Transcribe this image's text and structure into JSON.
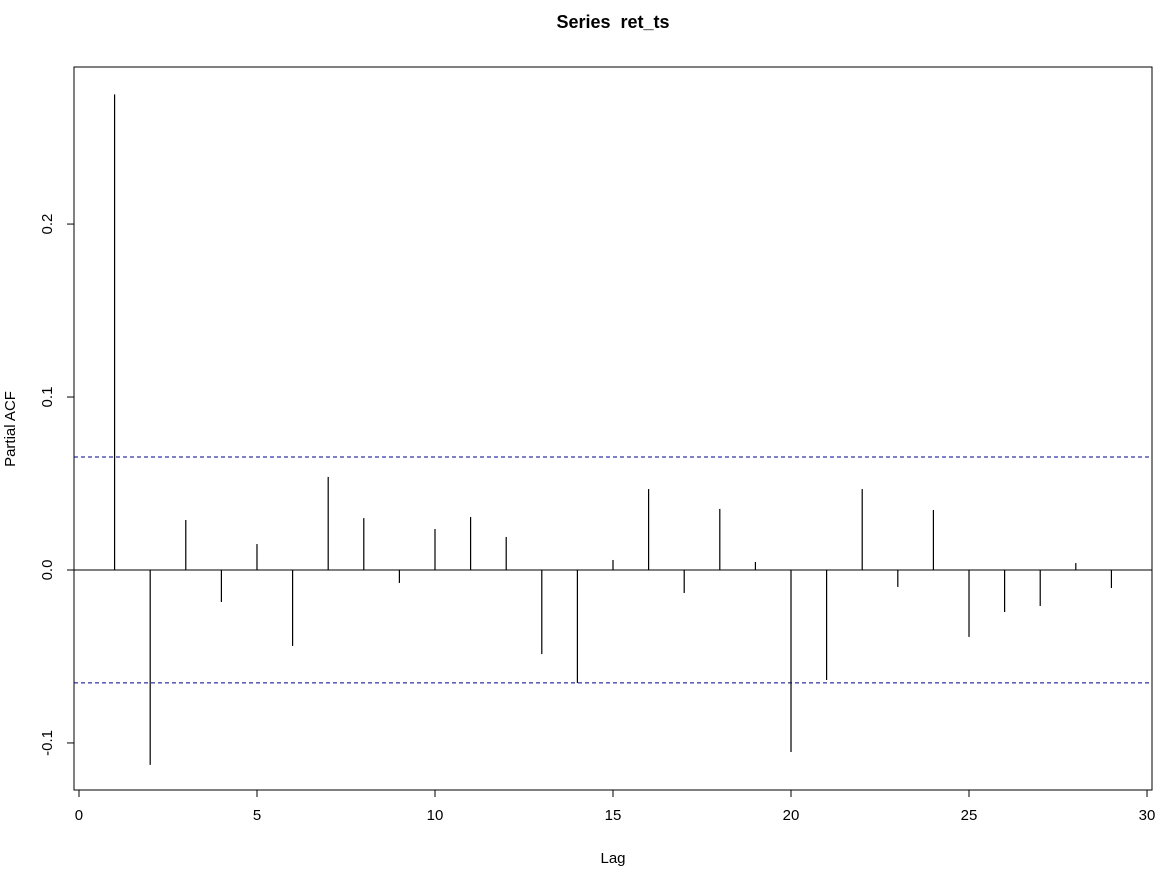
{
  "chart_data": {
    "type": "spike",
    "title": "Series  ret_ts",
    "x_label": "Lag",
    "y_label": "Partial ACF",
    "x": [
      1,
      2,
      3,
      4,
      5,
      6,
      7,
      8,
      9,
      10,
      11,
      12,
      13,
      14,
      15,
      16,
      17,
      18,
      19,
      20,
      21,
      22,
      23,
      24,
      25,
      26,
      27,
      28,
      29
    ],
    "values": [
      0.275,
      -0.1127,
      0.0289,
      -0.0185,
      0.015,
      -0.0439,
      0.0538,
      0.03,
      -0.0075,
      0.0237,
      0.0306,
      0.0191,
      -0.0486,
      -0.0653,
      0.0058,
      0.0468,
      -0.0133,
      0.0353,
      0.0046,
      -0.1052,
      -0.0636,
      0.0468,
      -0.0098,
      0.0347,
      -0.0387,
      -0.0243,
      -0.0208,
      0.004,
      -0.0104
    ],
    "color": "#000000",
    "ci_lines": [
      0.0653,
      -0.0653
    ],
    "ci_color": "#00008b",
    "xlim": [
      -0.14,
      30.14
    ],
    "ylim": [
      -0.1272,
      0.2908
    ],
    "xticks": [
      0,
      5,
      10,
      15,
      20,
      25,
      30
    ],
    "yticks": [
      -0.1,
      {
        "value": 0,
        "label": "0.0"
      },
      0.1,
      0.2
    ]
  }
}
